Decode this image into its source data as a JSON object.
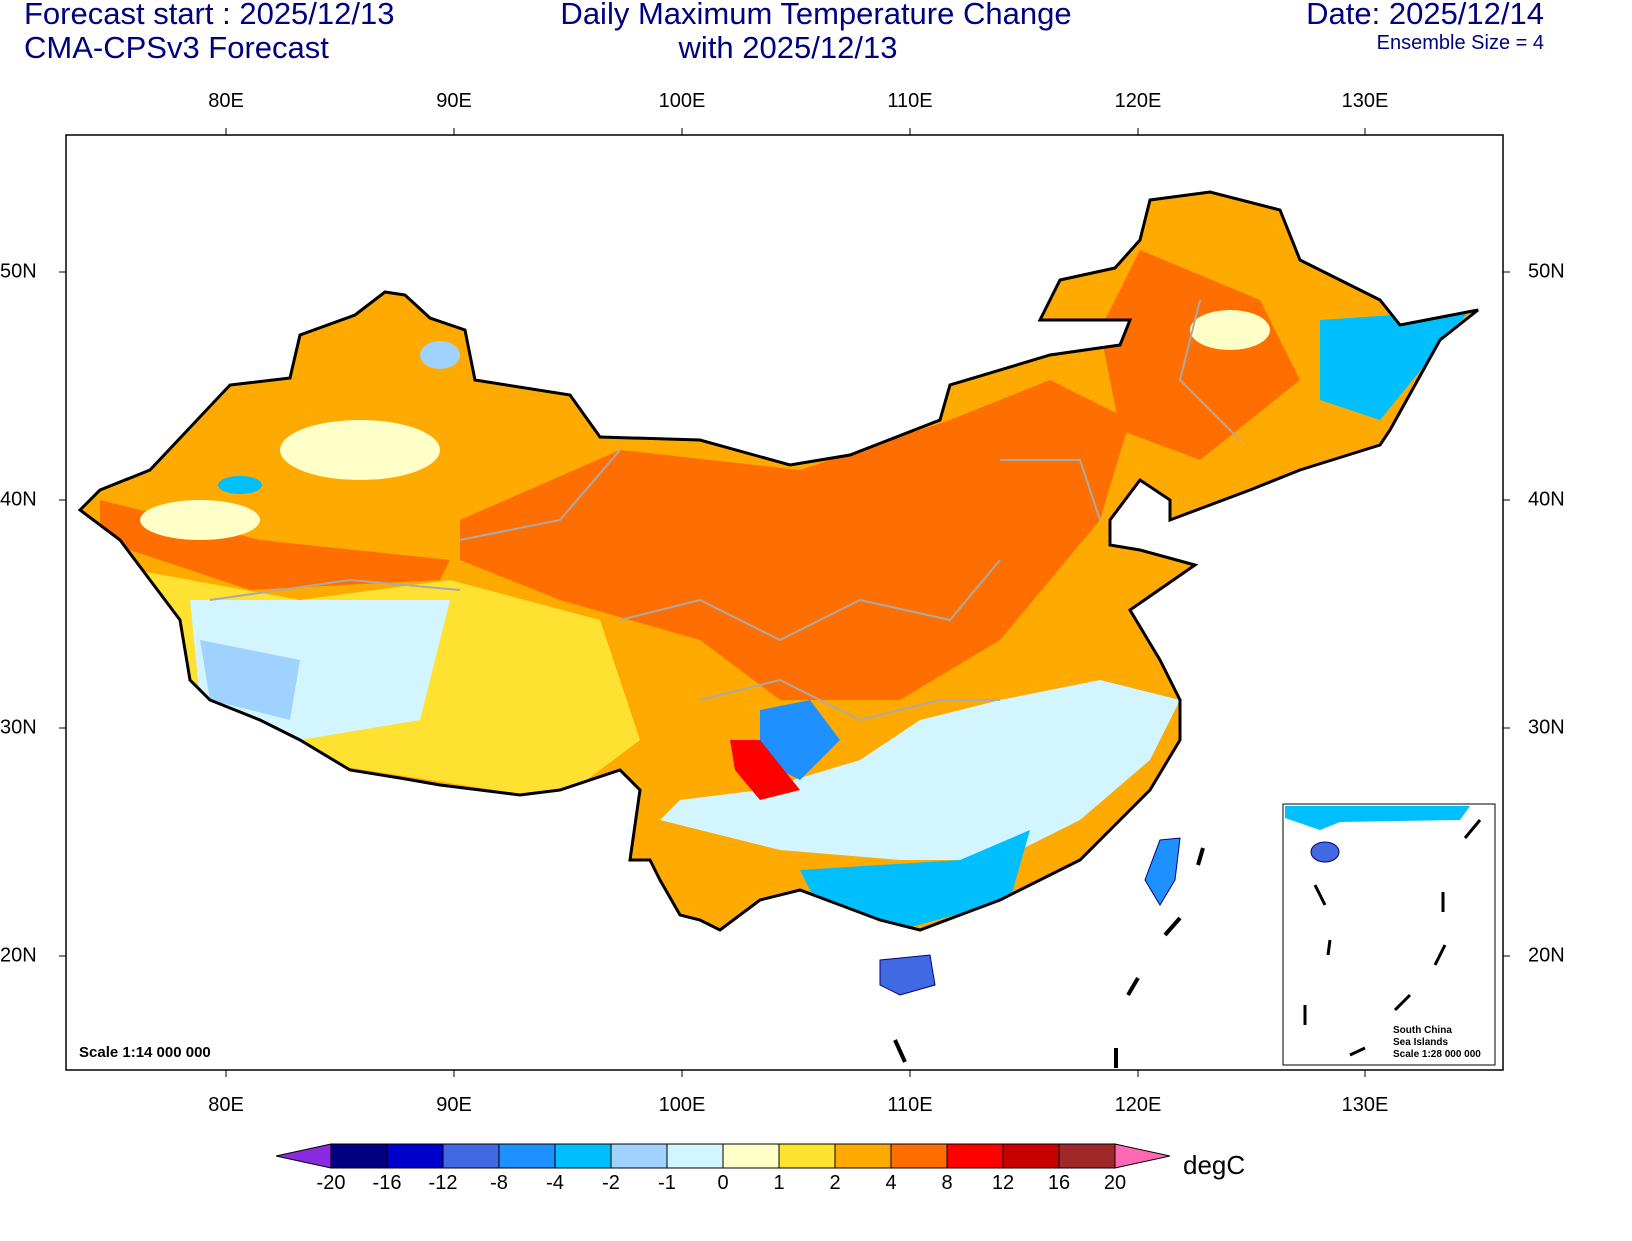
{
  "header": {
    "left_line1": "Forecast start : 2025/12/13",
    "left_line2": "CMA-CPSv3 Forecast",
    "title_line1": "Daily Maximum Temperature Change",
    "title_line2": "with 2025/12/13",
    "date": "Date: 2025/12/14",
    "ensemble": "Ensemble Size = 4"
  },
  "axes": {
    "lon_labels": [
      "80E",
      "90E",
      "100E",
      "110E",
      "120E",
      "130E"
    ],
    "lat_labels": [
      "50N",
      "40N",
      "30N",
      "20N"
    ]
  },
  "map": {
    "scale": "Scale 1:14 000 000",
    "inset_title1": "South China",
    "inset_title2": "Sea Islands",
    "inset_scale": "Scale 1:28 000 000"
  },
  "colorbar": {
    "unit": "degC",
    "labels": [
      "-20",
      "-16",
      "-12",
      "-8",
      "-4",
      "-2",
      "-1",
      "0",
      "1",
      "2",
      "4",
      "8",
      "12",
      "16",
      "20"
    ],
    "colors": [
      "#000080",
      "#0000cd",
      "#4169e1",
      "#1e90ff",
      "#00bfff",
      "#a0d2ff",
      "#d2f5ff",
      "#ffffc8",
      "#ffe132",
      "#ffaa00",
      "#ff6e00",
      "#ff0000",
      "#c80000",
      "#a02828"
    ],
    "low": "#8a2be2",
    "high": "#ff69b4"
  }
}
